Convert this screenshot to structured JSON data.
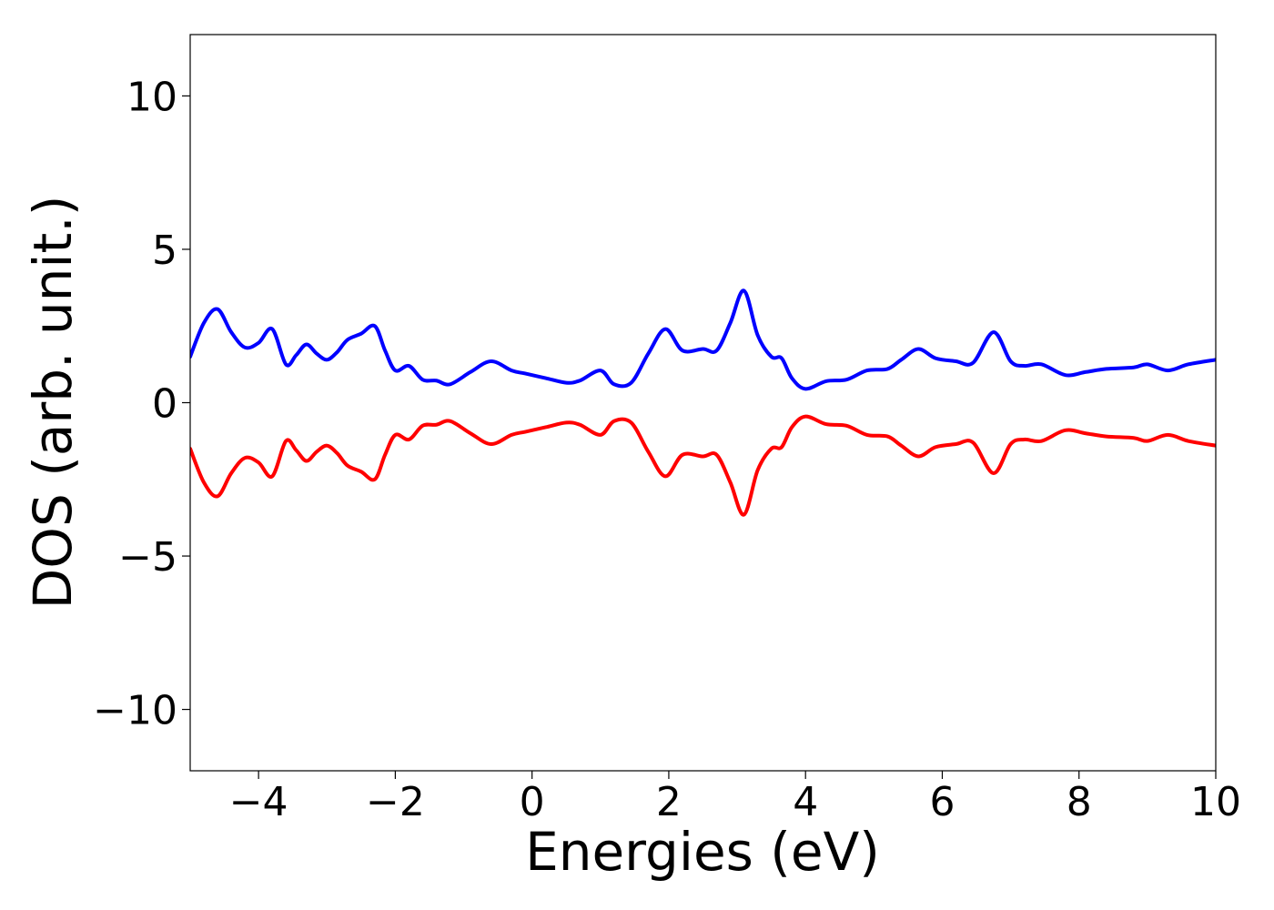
{
  "chart_data": {
    "type": "line",
    "xlabel": "Energies (eV)",
    "ylabel": "DOS (arb. unit.)",
    "xlim": [
      -5,
      10
    ],
    "ylim": [
      -12,
      12
    ],
    "xticks": [
      -4,
      -2,
      0,
      2,
      4,
      6,
      8,
      10
    ],
    "xtick_labels": [
      "−4",
      "−2",
      "0",
      "2",
      "4",
      "6",
      "8",
      "10"
    ],
    "yticks": [
      -10,
      -5,
      0,
      5,
      10
    ],
    "ytick_labels": [
      "−10",
      "−5",
      "0",
      "5",
      "10"
    ],
    "grid": false,
    "legend": "none",
    "series": [
      {
        "color": "#0000ff",
        "x": [
          -5.0,
          -4.8,
          -4.6,
          -4.4,
          -4.2,
          -4.0,
          -3.8,
          -3.6,
          -3.45,
          -3.3,
          -3.15,
          -3.0,
          -2.85,
          -2.7,
          -2.5,
          -2.3,
          -2.15,
          -2.0,
          -1.8,
          -1.6,
          -1.4,
          -1.2,
          -0.9,
          -0.6,
          -0.3,
          -0.1,
          0.2,
          0.5,
          0.7,
          1.0,
          1.2,
          1.45,
          1.7,
          1.95,
          2.2,
          2.5,
          2.7,
          2.9,
          3.1,
          3.3,
          3.5,
          3.65,
          3.8,
          4.0,
          4.3,
          4.6,
          4.9,
          5.2,
          5.4,
          5.65,
          5.9,
          6.2,
          6.45,
          6.75,
          7.0,
          7.2,
          7.45,
          7.8,
          8.1,
          8.4,
          8.8,
          9.0,
          9.3,
          9.6,
          10.0
        ],
        "y": [
          1.5,
          2.6,
          3.05,
          2.3,
          1.8,
          1.95,
          2.4,
          1.25,
          1.55,
          1.9,
          1.6,
          1.4,
          1.65,
          2.05,
          2.25,
          2.5,
          1.7,
          1.05,
          1.2,
          0.75,
          0.72,
          0.6,
          1.0,
          1.35,
          1.05,
          0.95,
          0.8,
          0.65,
          0.72,
          1.05,
          0.6,
          0.65,
          1.6,
          2.4,
          1.7,
          1.75,
          1.7,
          2.6,
          3.65,
          2.2,
          1.5,
          1.45,
          0.8,
          0.45,
          0.7,
          0.75,
          1.05,
          1.1,
          1.4,
          1.75,
          1.45,
          1.35,
          1.3,
          2.3,
          1.35,
          1.2,
          1.25,
          0.9,
          1.0,
          1.1,
          1.15,
          1.25,
          1.05,
          1.25,
          1.4
        ]
      },
      {
        "color": "#ff0000",
        "x": [
          -5.0,
          -4.8,
          -4.6,
          -4.4,
          -4.2,
          -4.0,
          -3.8,
          -3.6,
          -3.45,
          -3.3,
          -3.15,
          -3.0,
          -2.85,
          -2.7,
          -2.5,
          -2.3,
          -2.15,
          -2.0,
          -1.8,
          -1.6,
          -1.4,
          -1.2,
          -0.9,
          -0.6,
          -0.3,
          -0.1,
          0.2,
          0.5,
          0.7,
          1.0,
          1.2,
          1.45,
          1.7,
          1.95,
          2.2,
          2.5,
          2.7,
          2.9,
          3.1,
          3.3,
          3.5,
          3.65,
          3.8,
          4.0,
          4.3,
          4.6,
          4.9,
          5.2,
          5.4,
          5.65,
          5.9,
          6.2,
          6.45,
          6.75,
          7.0,
          7.2,
          7.45,
          7.8,
          8.1,
          8.4,
          8.8,
          9.0,
          9.3,
          9.6,
          10.0
        ],
        "y": [
          -1.5,
          -2.6,
          -3.05,
          -2.3,
          -1.8,
          -1.95,
          -2.4,
          -1.25,
          -1.55,
          -1.9,
          -1.6,
          -1.4,
          -1.65,
          -2.05,
          -2.25,
          -2.5,
          -1.7,
          -1.05,
          -1.2,
          -0.75,
          -0.72,
          -0.6,
          -1.0,
          -1.35,
          -1.05,
          -0.95,
          -0.8,
          -0.65,
          -0.72,
          -1.05,
          -0.6,
          -0.65,
          -1.6,
          -2.4,
          -1.7,
          -1.75,
          -1.7,
          -2.6,
          -3.65,
          -2.2,
          -1.5,
          -1.45,
          -0.8,
          -0.45,
          -0.7,
          -0.75,
          -1.05,
          -1.1,
          -1.4,
          -1.75,
          -1.45,
          -1.35,
          -1.3,
          -2.3,
          -1.35,
          -1.2,
          -1.25,
          -0.9,
          -1.0,
          -1.1,
          -1.15,
          -1.25,
          -1.05,
          -1.25,
          -1.4
        ]
      }
    ]
  }
}
